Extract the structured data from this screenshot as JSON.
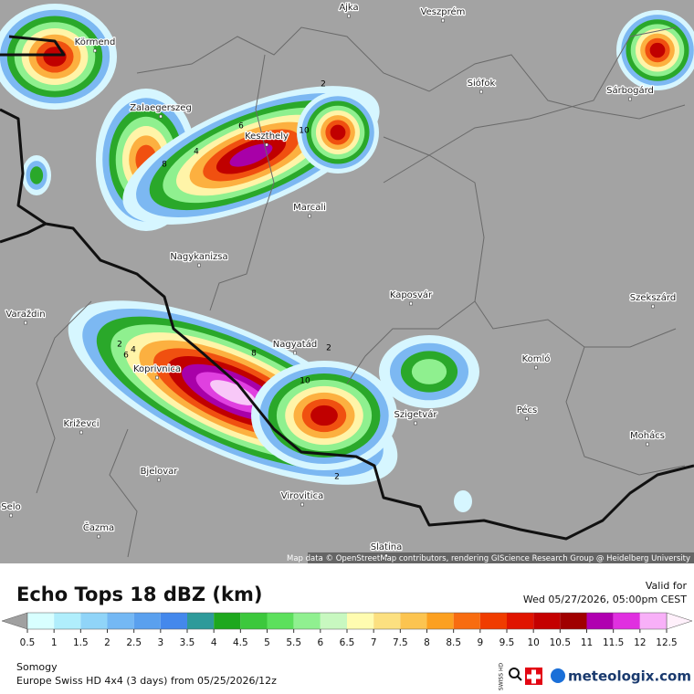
{
  "map": {
    "places": [
      "Ajka",
      "Veszprém",
      "Körmend",
      "Siófok",
      "Sárbogárd",
      "Zalaegerszeg",
      "Keszthely",
      "Marcali",
      "Nagykanizsa",
      "Kaposvár",
      "Szekszárd",
      "Varaždin",
      "Nagyatád",
      "Koprivnica",
      "Komló",
      "Pécs",
      "Szigetvár",
      "Križevci",
      "Mohács",
      "Bjelovar",
      "Virovitica",
      "Selo",
      "Čazma",
      "Slatina"
    ],
    "contour_labels": [
      "2",
      "4",
      "6",
      "8",
      "10",
      "2",
      "4",
      "6",
      "8",
      "10",
      "2",
      "2"
    ],
    "attribution": "Map data © OpenStreetMap contributors, rendering GIScience Research Group @ Heidelberg University"
  },
  "legend": {
    "title": "Echo Tops 18 dBZ (km)",
    "valid_label": "Valid for",
    "valid_time": "Wed 05/27/2026, 05:00pm CEST",
    "ticks": [
      0.5,
      1,
      1.5,
      2,
      2.5,
      3,
      3.5,
      4,
      4.5,
      5,
      5.5,
      6,
      6.5,
      7,
      7.5,
      8,
      8.5,
      9,
      9.5,
      10,
      10.5,
      11,
      11.5,
      12,
      12.5
    ],
    "colors": [
      "#d8ffff",
      "#b0eefc",
      "#90d4f8",
      "#74b8f4",
      "#5aa0ee",
      "#4488ec",
      "#2e9a9a",
      "#1ea81e",
      "#3cc83c",
      "#5ce05c",
      "#90f090",
      "#c8f8c0",
      "#fffcb0",
      "#fce080",
      "#fcc450",
      "#fca020",
      "#f86c10",
      "#f03c00",
      "#e01400",
      "#c40000",
      "#a00000",
      "#b000b0",
      "#e030e0",
      "#f8b0f8"
    ],
    "below_color": "#a0a0a0",
    "above_color": "#fff0fb"
  },
  "footer": {
    "region": "Somogy",
    "model": "Europe Swiss HD 4x4 (3 days) from 05/25/2026/12z",
    "badge": "SWISS HD",
    "brand": "meteologix.com"
  }
}
